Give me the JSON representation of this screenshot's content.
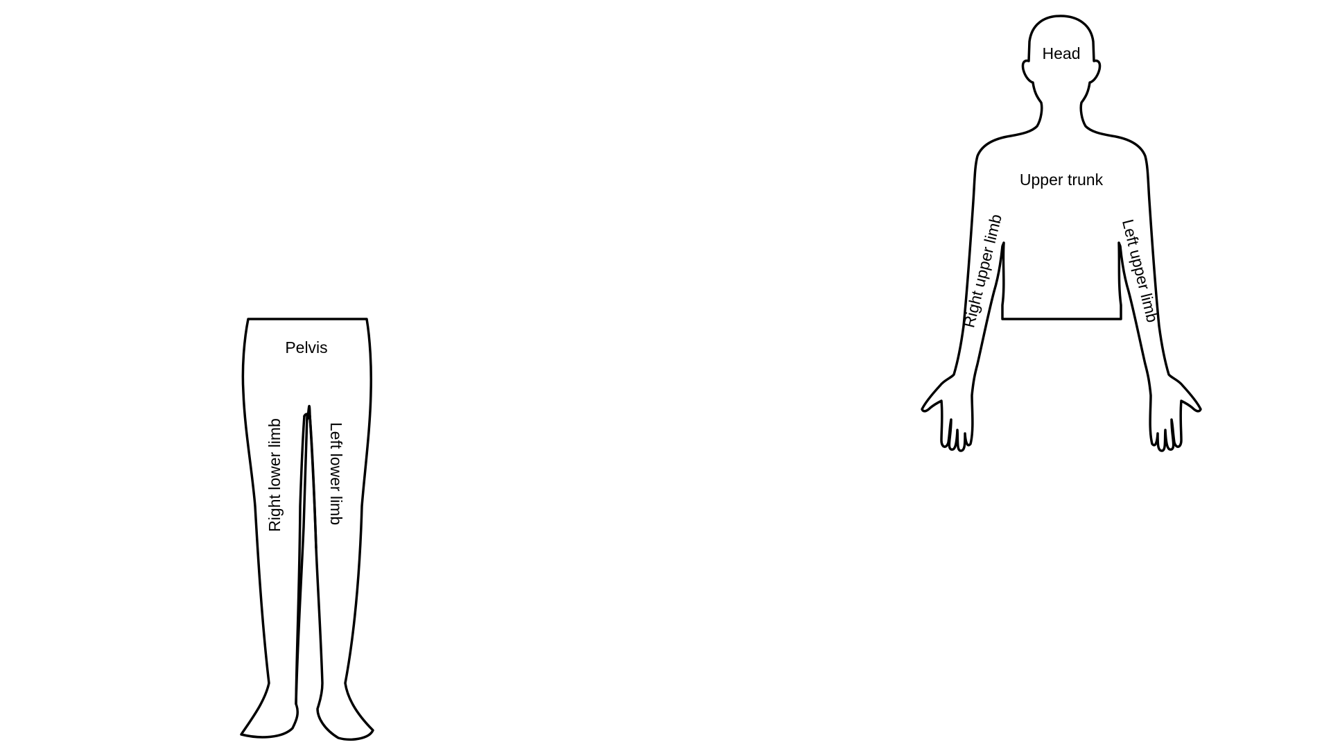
{
  "colors": {
    "background": "#ffffff",
    "outline": "#000000",
    "label": "#000000"
  },
  "upper_body": {
    "labels": {
      "head": "Head",
      "upper_trunk": "Upper trunk",
      "right_upper_limb": "Right upper limb",
      "left_upper_limb": "Left upper limb"
    }
  },
  "lower_body": {
    "labels": {
      "pelvis": "Pelvis",
      "right_lower_limb": "Right lower limb",
      "left_lower_limb": "Left lower limb"
    }
  }
}
